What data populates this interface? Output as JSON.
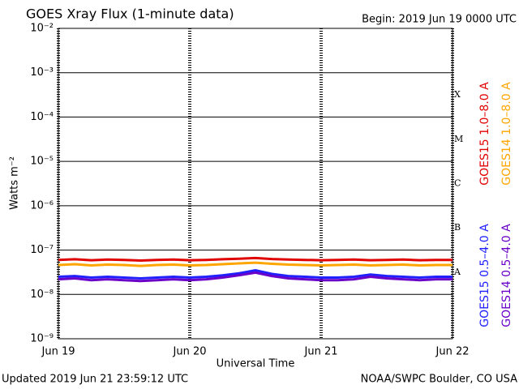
{
  "chart_data": {
    "type": "line",
    "title": "GOES Xray Flux (1-minute data)",
    "subtitle": "Begin:  2019 Jun 19 0000 UTC",
    "y_label": "Watts m⁻²",
    "x_label": "Universal Time",
    "footer_left": "Updated 2019 Jun 21 23:59:12 UTC",
    "footer_right": "NOAA/SWPC Boulder, CO USA",
    "flare_classes": [
      "A",
      "B",
      "C",
      "M",
      "X"
    ],
    "log_scale": true,
    "grid": true,
    "xlim": [
      0,
      3
    ],
    "xticks": [
      {
        "value": 0,
        "label": "Jun 19"
      },
      {
        "value": 1,
        "label": "Jun 20"
      },
      {
        "value": 2,
        "label": "Jun 21"
      },
      {
        "value": 3,
        "label": "Jun 22"
      }
    ],
    "ylim": [
      1e-09,
      0.01
    ],
    "yticks": [
      {
        "value": 1e-09,
        "label": "10⁻⁹"
      },
      {
        "value": 1e-08,
        "label": "10⁻⁸"
      },
      {
        "value": 1e-07,
        "label": "10⁻⁷"
      },
      {
        "value": 1e-06,
        "label": "10⁻⁶"
      },
      {
        "value": 1e-05,
        "label": "10⁻⁵"
      },
      {
        "value": 0.0001,
        "label": "10⁻⁴"
      },
      {
        "value": 0.001,
        "label": "10⁻³"
      },
      {
        "value": 0.01,
        "label": "10⁻²"
      }
    ],
    "x": [
      0,
      0.125,
      0.25,
      0.375,
      0.5,
      0.625,
      0.75,
      0.875,
      1,
      1.125,
      1.25,
      1.375,
      1.5,
      1.625,
      1.75,
      1.875,
      2,
      2.125,
      2.25,
      2.375,
      2.5,
      2.625,
      2.75,
      2.875,
      3
    ],
    "series": [
      {
        "name": "GOES15 1.0–8.0 A",
        "color": "#e00000",
        "values": [
          6e-08,
          6.2e-08,
          5.9e-08,
          6.1e-08,
          6e-08,
          5.8e-08,
          6e-08,
          6.1e-08,
          5.9e-08,
          6e-08,
          6.2e-08,
          6.4e-08,
          6.6e-08,
          6.3e-08,
          6.1e-08,
          6e-08,
          5.9e-08,
          6e-08,
          6.1e-08,
          5.9e-08,
          6e-08,
          6.1e-08,
          5.9e-08,
          6e-08,
          6e-08
        ]
      },
      {
        "name": "GOES14 1.0–8.0 A",
        "color": "#ffa500",
        "values": [
          4.6e-08,
          4.8e-08,
          4.5e-08,
          4.7e-08,
          4.6e-08,
          4.4e-08,
          4.6e-08,
          4.7e-08,
          4.5e-08,
          4.6e-08,
          4.8e-08,
          5e-08,
          5.2e-08,
          4.9e-08,
          4.7e-08,
          4.6e-08,
          4.5e-08,
          4.6e-08,
          4.7e-08,
          4.5e-08,
          4.6e-08,
          4.7e-08,
          4.5e-08,
          4.6e-08,
          4.6e-08
        ]
      },
      {
        "name": "GOES15 0.5–4.0 A",
        "color": "#2020ff",
        "values": [
          2.5e-08,
          2.6e-08,
          2.4e-08,
          2.5e-08,
          2.4e-08,
          2.3e-08,
          2.4e-08,
          2.5e-08,
          2.4e-08,
          2.5e-08,
          2.7e-08,
          3e-08,
          3.5e-08,
          2.9e-08,
          2.6e-08,
          2.5e-08,
          2.4e-08,
          2.4e-08,
          2.5e-08,
          2.8e-08,
          2.6e-08,
          2.5e-08,
          2.4e-08,
          2.5e-08,
          2.5e-08
        ]
      },
      {
        "name": "GOES14 0.5–4.0 A",
        "color": "#6a00c8",
        "values": [
          2.2e-08,
          2.3e-08,
          2.1e-08,
          2.2e-08,
          2.1e-08,
          2e-08,
          2.1e-08,
          2.2e-08,
          2.1e-08,
          2.2e-08,
          2.4e-08,
          2.7e-08,
          3.1e-08,
          2.6e-08,
          2.3e-08,
          2.2e-08,
          2.1e-08,
          2.1e-08,
          2.2e-08,
          2.5e-08,
          2.3e-08,
          2.2e-08,
          2.1e-08,
          2.2e-08,
          2.2e-08
        ]
      }
    ]
  }
}
